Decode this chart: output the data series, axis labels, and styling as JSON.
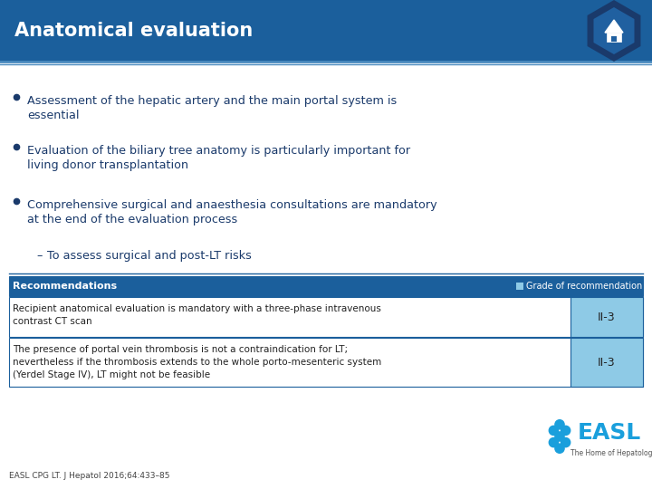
{
  "title": "Anatomical evaluation",
  "title_bg_color": "#1b5f9c",
  "title_text_color": "#ffffff",
  "bg_color": "#ffffff",
  "accent_color": "#1b5f9c",
  "light_blue": "#8ecae6",
  "bullet_color": "#1a3a6b",
  "bullets": [
    [
      "Assessment of the hepatic artery and the main portal system is",
      "essential"
    ],
    [
      "Evaluation of the biliary tree anatomy is particularly important for",
      "living donor transplantation"
    ],
    [
      "Comprehensive surgical and anaesthesia consultations are mandatory",
      "at the end of the evaluation process"
    ]
  ],
  "sub_bullet": "To assess surgical and post-LT risks",
  "rec_header": "Recommendations",
  "rec_grade_header": "Grade of recommendation",
  "rec_header_bg": "#1b5f9c",
  "rec_header_text": "#ffffff",
  "rec_row_bg": "#ffffff",
  "rec_grade_bg": "#8ecae6",
  "recommendations": [
    {
      "lines": [
        "Recipient anatomical evaluation is mandatory with a three-phase intravenous",
        "contrast CT scan"
      ],
      "grade": "II-3"
    },
    {
      "lines": [
        "The presence of portal vein thrombosis is not a contraindication for LT;",
        "nevertheless if the thrombosis extends to the whole porto-mesenteric system",
        "(Yerdel Stage IV), LT might not be feasible"
      ],
      "grade": "II-3"
    }
  ],
  "footer_text": "EASL CPG LT. J Hepatol 2016;64:433–85",
  "footer_color": "#444444",
  "border_color": "#1b5f9c",
  "hex_color": "#1a3a6b",
  "hex_inner_color": "#2060a0"
}
